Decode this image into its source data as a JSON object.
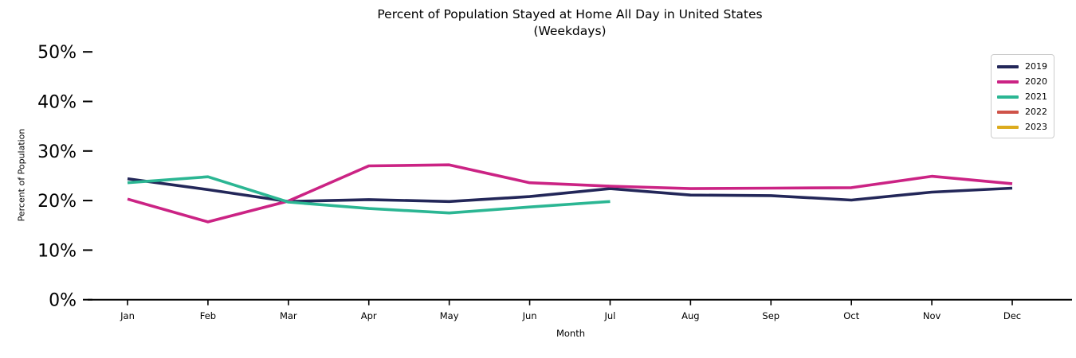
{
  "chart_data": {
    "type": "line",
    "title": "Percent of Population Stayed at Home All Day in United States",
    "subtitle": "(Weekdays)",
    "xlabel": "Month",
    "ylabel": "Percent of Population",
    "categories": [
      "Jan",
      "Feb",
      "Mar",
      "Apr",
      "May",
      "Jun",
      "Jul",
      "Aug",
      "Sep",
      "Oct",
      "Nov",
      "Dec"
    ],
    "yticks": [
      {
        "value": 0,
        "label": "0%"
      },
      {
        "value": 10,
        "label": "10%"
      },
      {
        "value": 20,
        "label": "20%"
      },
      {
        "value": 30,
        "label": "30%"
      },
      {
        "value": 40,
        "label": "40%"
      },
      {
        "value": 50,
        "label": "50%"
      }
    ],
    "ylim": [
      0,
      52
    ],
    "grid": false,
    "legend_position": "upper right",
    "series": [
      {
        "name": "2019",
        "color": "#232759",
        "values": [
          24.4,
          22.2,
          19.8,
          20.2,
          19.8,
          20.8,
          22.4,
          21.1,
          21.0,
          20.1,
          21.7,
          22.5
        ]
      },
      {
        "name": "2020",
        "color": "#cb2384",
        "values": [
          20.3,
          15.7,
          19.9,
          27.0,
          27.2,
          23.6,
          22.9,
          22.4,
          22.5,
          22.6,
          24.9,
          23.4
        ]
      },
      {
        "name": "2021",
        "color": "#2bb693",
        "values": [
          23.6,
          24.8,
          19.7,
          18.4,
          17.5,
          18.7,
          19.8,
          null,
          null,
          null,
          null,
          null
        ]
      },
      {
        "name": "2022",
        "color": "#cf5349",
        "values": []
      },
      {
        "name": "2023",
        "color": "#dcab1e",
        "values": []
      }
    ]
  }
}
